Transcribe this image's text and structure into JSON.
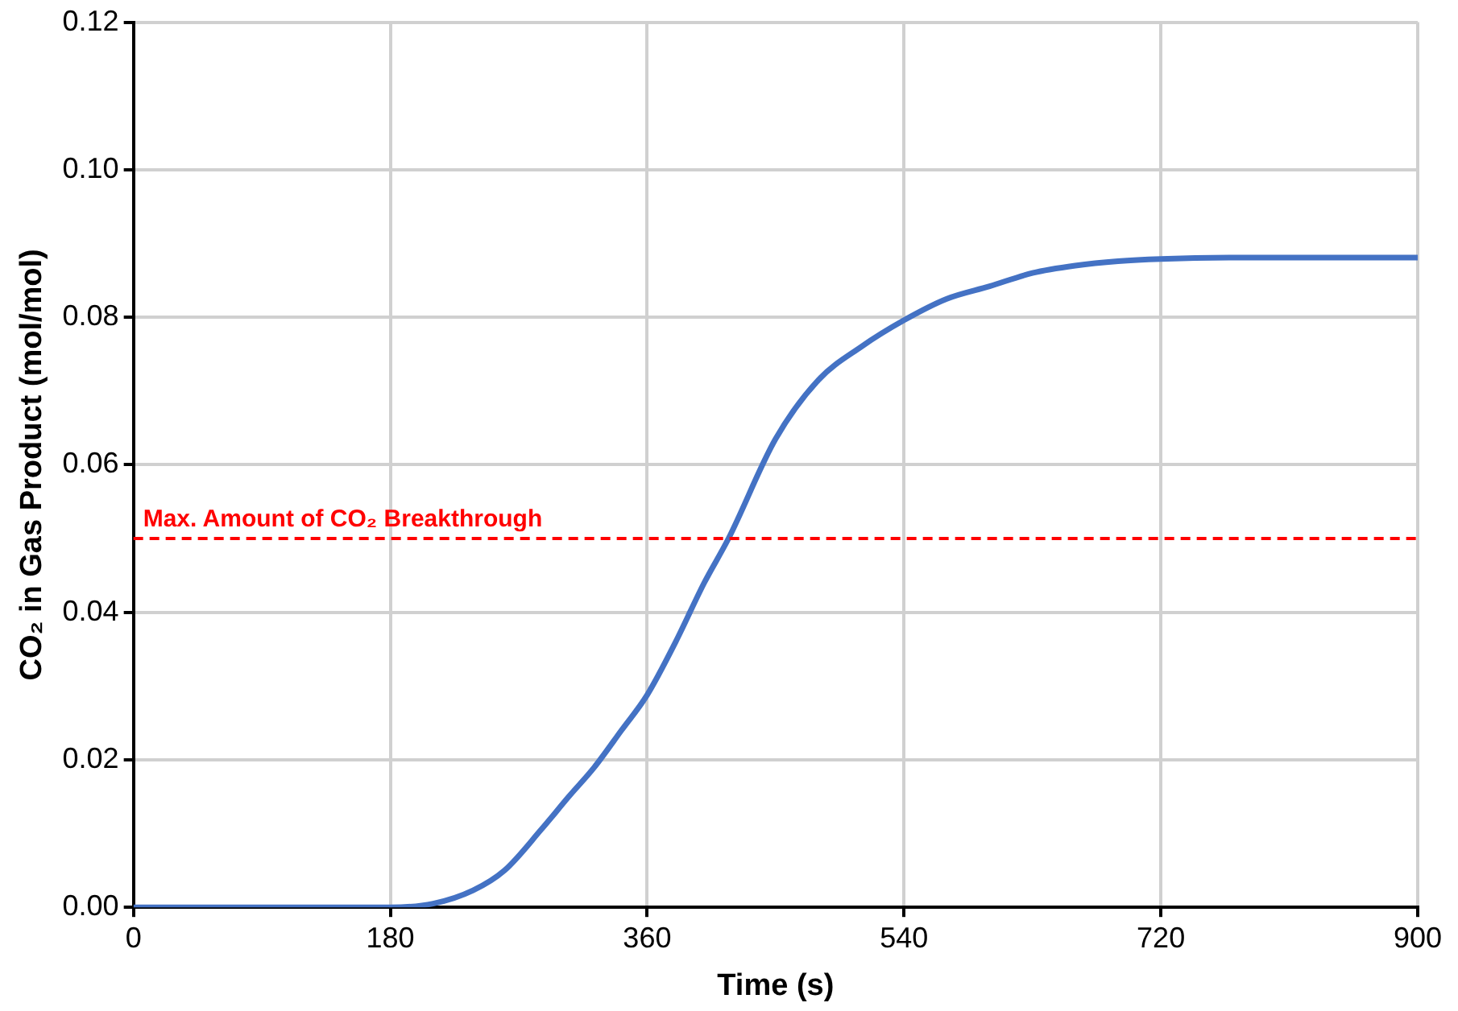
{
  "chart_data": {
    "type": "line",
    "xlabel": "Time (s)",
    "ylabel": "CO₂ in Gas Product (mol/mol)",
    "x": [
      0,
      60,
      120,
      180,
      210,
      238,
      260,
      286,
      305,
      323,
      342,
      360,
      380,
      400,
      417,
      450,
      480,
      510,
      540,
      570,
      600,
      630,
      660,
      690,
      720,
      780,
      840,
      900
    ],
    "series": [
      {
        "color": "#4472c4",
        "values": [
          0,
          0,
          0,
          0,
          0.0005,
          0.0023,
          0.005,
          0.0106,
          0.015,
          0.019,
          0.024,
          0.0288,
          0.036,
          0.044,
          0.05,
          0.0635,
          0.0715,
          0.076,
          0.0796,
          0.0825,
          0.0842,
          0.086,
          0.087,
          0.0876,
          0.0879,
          0.0881,
          0.0881,
          0.0881
        ]
      }
    ],
    "xlim": [
      0,
      900
    ],
    "xticks": [
      0,
      180,
      360,
      540,
      720,
      900
    ],
    "ylim": [
      0,
      0.12
    ],
    "yticks": [
      {
        "value": 0,
        "label": "0.00"
      },
      {
        "value": 0.02,
        "label": "0.02"
      },
      {
        "value": 0.04,
        "label": "0.04"
      },
      {
        "value": 0.06,
        "label": "0.06"
      },
      {
        "value": 0.08,
        "label": "0.08"
      },
      {
        "value": 0.1,
        "label": "0.10"
      },
      {
        "value": 0.12,
        "label": "0.12"
      }
    ],
    "ref_lines": [
      {
        "axis": "y",
        "value": 0.05,
        "label": "Max. Amount of CO₂ Breakthrough",
        "color": "#ff0000",
        "line_style": "dashed"
      }
    ],
    "grid": true,
    "legend": false,
    "marker": "none",
    "line_style": "solid"
  }
}
